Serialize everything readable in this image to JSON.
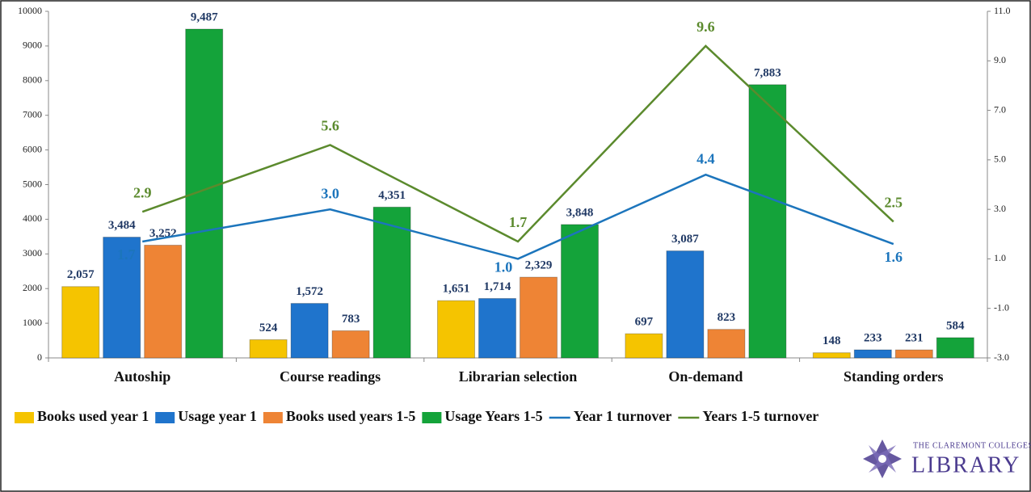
{
  "chart_data": {
    "type": "bar",
    "categories": [
      "Autoship",
      "Course readings",
      "Librarian selection",
      "On-demand",
      "Standing orders"
    ],
    "ylim": [
      0,
      10000
    ],
    "yticks": [
      0,
      1000,
      2000,
      3000,
      4000,
      5000,
      6000,
      7000,
      8000,
      9000,
      10000
    ],
    "y2lim": [
      -3,
      11
    ],
    "y2ticks": [
      {
        "value": -3,
        "label": "-3.0"
      },
      {
        "value": -1,
        "label": "-1.0"
      },
      {
        "value": 1,
        "label": "1.0"
      },
      {
        "value": 3,
        "label": "3.0"
      },
      {
        "value": 5,
        "label": "5.0"
      },
      {
        "value": 7,
        "label": "7.0"
      },
      {
        "value": 9,
        "label": "9.0"
      },
      {
        "value": 11,
        "label": "11.0"
      }
    ],
    "legend": "bottom",
    "series": [
      {
        "name": "Books used year 1",
        "type": "bar",
        "color": "#f5c400",
        "values": [
          2057,
          524,
          1651,
          697,
          148
        ],
        "value_labels": [
          "2,057",
          "524",
          "1,651",
          "697",
          "148"
        ]
      },
      {
        "name": "Usage year 1",
        "type": "bar",
        "color": "#1f74cc",
        "values": [
          3484,
          1572,
          1714,
          3087,
          233
        ],
        "value_labels": [
          "3,484",
          "1,572",
          "1,714",
          "3,087",
          "233"
        ]
      },
      {
        "name": "Books used years 1-5",
        "type": "bar",
        "color": "#ee8435",
        "values": [
          3252,
          783,
          2329,
          823,
          231
        ],
        "value_labels": [
          "3,252",
          "783",
          "2,329",
          "823",
          "231"
        ]
      },
      {
        "name": "Usage Years 1-5",
        "type": "bar",
        "color": "#14a33a",
        "values": [
          9487,
          4351,
          3848,
          7883,
          584
        ],
        "value_labels": [
          "9,487",
          "4,351",
          "3,848",
          "7,883",
          "584"
        ]
      },
      {
        "name": "Year 1 turnover",
        "type": "line",
        "axis": "y2",
        "color": "#1c75bc",
        "values": [
          1.7,
          3.0,
          1.0,
          4.4,
          1.6
        ],
        "value_labels": [
          "1.7",
          "3.0",
          "1.0",
          "4.4",
          "1.6"
        ]
      },
      {
        "name": "Years 1-5 turnover",
        "type": "line",
        "axis": "y2",
        "color": "#5b8a2d",
        "values": [
          2.9,
          5.6,
          1.7,
          9.6,
          2.5
        ],
        "value_labels": [
          "2.9",
          "5.6",
          "1.7",
          "9.6",
          "2.5"
        ]
      }
    ]
  },
  "logo": {
    "line1": "THE CLAREMONT COLLEGES",
    "line2": "LIBRARY"
  }
}
